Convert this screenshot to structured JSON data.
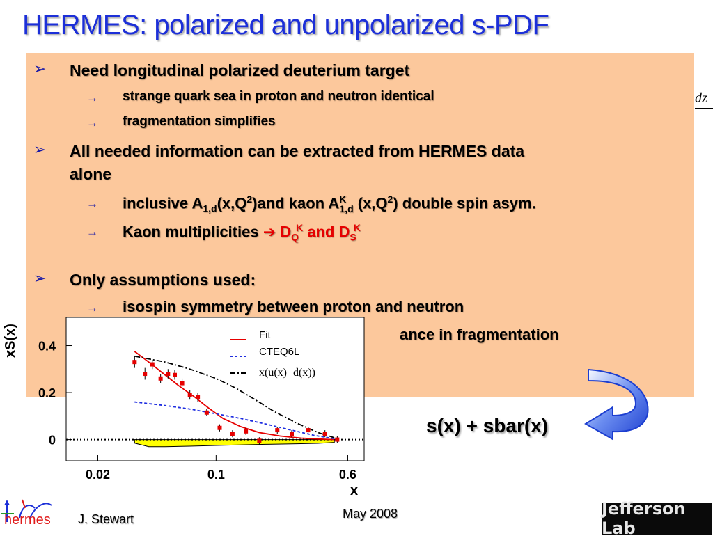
{
  "title": "HERMES: polarized and unpolarized s-PDF",
  "background_formula": "dz",
  "bullets": {
    "b1": "Need longitudinal polarized deuterium target",
    "b1_s1": "strange quark sea in proton and neutron identical",
    "b1_s2": "fragmentation simplifies",
    "b2_line1": "All needed information can be extracted from HERMES data",
    "b2_line2": "alone",
    "b2_s1_a": "inclusive A",
    "b2_s1_a_sub": "1,d",
    "b2_s1_b": "(x,Q",
    "b2_s1_b_sup": "2",
    "b2_s1_c": ")and kaon A",
    "b2_s1_c_sup": "K",
    "b2_s1_c_sub": "1,d",
    "b2_s1_d": " (x,Q",
    "b2_s1_d_sup": "2",
    "b2_s1_e": ") double spin asym.",
    "b2_s2_a": "Kaon multiplicities ",
    "b2_s2_arrow": "➔",
    "b2_s2_dq": " D",
    "b2_s2_dq_sub": "Q",
    "b2_s2_dq_sup": "K",
    "b2_s2_and": " and D",
    "b2_s2_ds_sub": "S",
    "b2_s2_ds_sup": "K",
    "b3": "Only assumptions used:",
    "b3_s1": "isospin symmetry between proton and neutron",
    "b3_s2_visible": "ance in fragmentation"
  },
  "callout": "s(x) + sbar(x)",
  "footer": {
    "author": "J. Stewart",
    "date": "May 2008",
    "logo_left": "hermes",
    "logo_right": "Jefferson Lab"
  },
  "colors": {
    "title": "#1c2fd8",
    "panel": "#fcc89c",
    "fit": "#e60000",
    "cteq": "#1f2ee0",
    "data": "#e60000",
    "syst_band": "#ffff00"
  },
  "chart_data": {
    "type": "scatter",
    "xlabel": "x",
    "ylabel": "xS(x)",
    "x_scale": "log",
    "xlim": [
      0.013,
      0.75
    ],
    "ylim": [
      -0.09,
      0.52
    ],
    "x_ticks": [
      "0.02",
      "0.1",
      "0.6"
    ],
    "x_tick_values": [
      0.02,
      0.1,
      0.6
    ],
    "y_ticks": [
      "0",
      "0.2",
      "0.4"
    ],
    "y_tick_values": [
      0,
      0.2,
      0.4
    ],
    "zero_line": true,
    "legend": [
      "Fit",
      "CTEQ6L",
      "x(u(x)+d(x))"
    ],
    "series": [
      {
        "name": "Fit",
        "style": "solid",
        "x": [
          0.033,
          0.04,
          0.05,
          0.06,
          0.075,
          0.09,
          0.11,
          0.14,
          0.18,
          0.24,
          0.32,
          0.42,
          0.5
        ],
        "y": [
          0.375,
          0.33,
          0.275,
          0.23,
          0.18,
          0.135,
          0.09,
          0.055,
          0.03,
          0.015,
          0.006,
          0.002,
          0.0
        ]
      },
      {
        "name": "CTEQ6L",
        "style": "dashed",
        "x": [
          0.033,
          0.05,
          0.07,
          0.1,
          0.14,
          0.2,
          0.28,
          0.38,
          0.5
        ],
        "y": [
          0.16,
          0.145,
          0.13,
          0.11,
          0.09,
          0.065,
          0.04,
          0.018,
          0.004
        ]
      },
      {
        "name": "x(u(x)+d(x))",
        "style": "dashdot",
        "x": [
          0.033,
          0.05,
          0.07,
          0.1,
          0.13,
          0.17,
          0.22,
          0.3,
          0.4,
          0.5
        ],
        "y": [
          0.355,
          0.33,
          0.3,
          0.26,
          0.22,
          0.17,
          0.12,
          0.07,
          0.03,
          0.008
        ]
      },
      {
        "name": "data",
        "style": "points",
        "x": [
          0.033,
          0.038,
          0.042,
          0.047,
          0.052,
          0.057,
          0.063,
          0.07,
          0.078,
          0.088,
          0.105,
          0.125,
          0.15,
          0.18,
          0.23,
          0.28,
          0.35,
          0.44,
          0.52
        ],
        "y": [
          0.33,
          0.28,
          0.32,
          0.26,
          0.28,
          0.275,
          0.24,
          0.19,
          0.18,
          0.115,
          0.05,
          0.025,
          0.035,
          -0.005,
          0.04,
          0.025,
          0.04,
          0.025,
          0.0
        ],
        "err": [
          0.025,
          0.025,
          0.02,
          0.02,
          0.02,
          0.02,
          0.02,
          0.02,
          0.02,
          0.015,
          0.015,
          0.015,
          0.015,
          0.015,
          0.015,
          0.015,
          0.015,
          0.015,
          0.015
        ]
      }
    ],
    "systematic_band": {
      "x": [
        0.033,
        0.04,
        0.05,
        0.07,
        0.1,
        0.15,
        0.2,
        0.3,
        0.4,
        0.5
      ],
      "y": [
        0.015,
        0.03,
        0.03,
        0.028,
        0.025,
        0.022,
        0.02,
        0.018,
        0.016,
        0.012
      ]
    }
  }
}
